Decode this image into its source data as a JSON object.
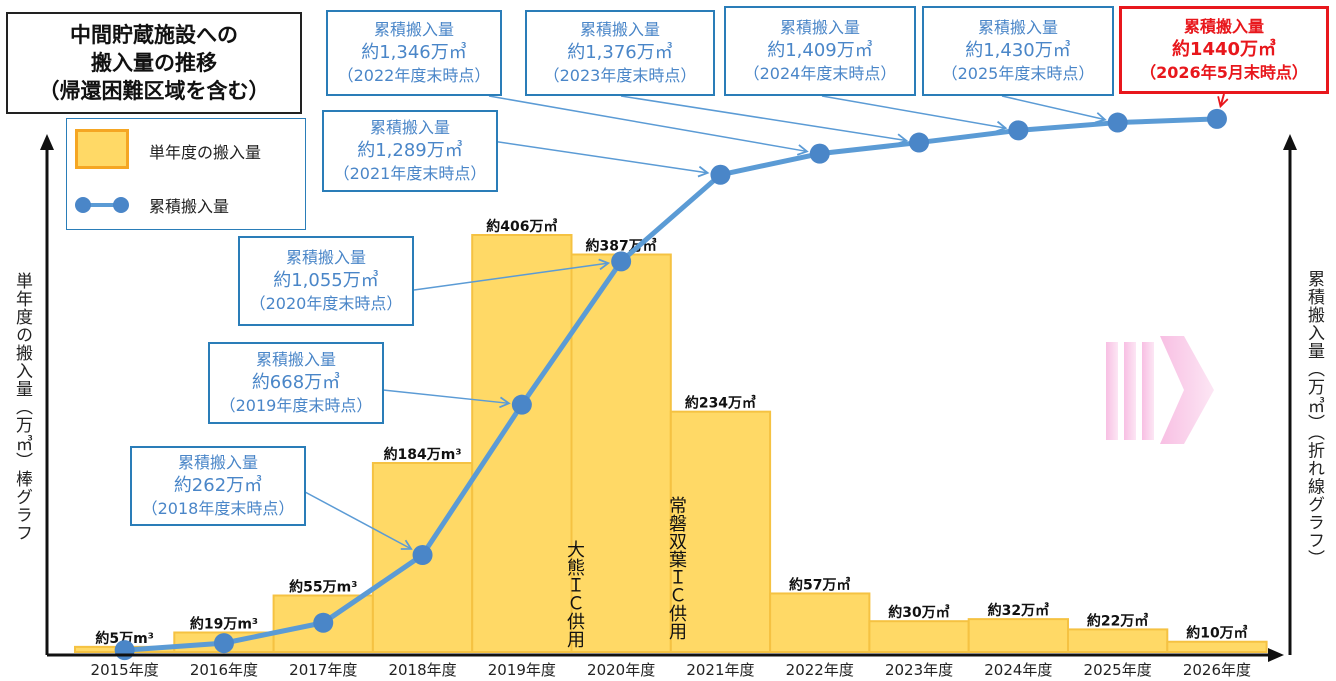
{
  "title": [
    "中間貯蔵施設への",
    "搬入量の推移",
    "（帰還困難区域を含む）"
  ],
  "legend": {
    "bar": "単年度の搬入量",
    "line": "累積搬入量"
  },
  "axes": {
    "left_label": "単年度の搬入量（万㎥）棒グラフ",
    "right_label": "累積搬入量（万㎥）（折れ線グラフ）"
  },
  "annotations": {
    "ookuma": "大熊ＩＣ供用",
    "joban": "常磐双葉ＩＣ供用"
  },
  "colors": {
    "bar_fill": "#ffd966",
    "bar_stroke": "#f5c242",
    "line": "#5b9bd5",
    "marker": "#4a86c8",
    "callout_border": "#2a7db8",
    "highlight": "#e8171c",
    "arrow_decor": "#f7b8e0"
  },
  "chart_data": {
    "type": "bar+line",
    "categories": [
      "2015年度",
      "2016年度",
      "2017年度",
      "2018年度",
      "2019年度",
      "2020年度",
      "2021年度",
      "2022年度",
      "2023年度",
      "2024年度",
      "2025年度",
      "2026年度"
    ],
    "series": [
      {
        "name": "単年度の搬入量",
        "kind": "bar",
        "values": [
          5,
          19,
          55,
          184,
          406,
          387,
          234,
          57,
          30,
          32,
          22,
          10
        ],
        "labels": [
          "約5万m³",
          "約19万m³",
          "約55万m³",
          "約184万m³",
          "約406万㎥",
          "約387万㎥",
          "約234万㎥",
          "約57万㎥",
          "約30万㎥",
          "約32万㎥",
          "約22万㎥",
          "約10万㎥"
        ]
      },
      {
        "name": "累積搬入量",
        "kind": "line",
        "values": [
          5,
          24,
          79,
          262,
          668,
          1055,
          1289,
          1346,
          1376,
          1409,
          1430,
          1440
        ]
      }
    ],
    "ylim_bar": [
      0,
      430
    ],
    "ylim_line": [
      0,
      1680
    ],
    "callouts": [
      {
        "l1": "累積搬入量",
        "l2": "約262万㎥",
        "l3": "（2018年度末時点）"
      },
      {
        "l1": "累積搬入量",
        "l2": "約668万㎥",
        "l3": "（2019年度末時点）"
      },
      {
        "l1": "累積搬入量",
        "l2": "約1,055万㎥",
        "l3": "（2020年度末時点）"
      },
      {
        "l1": "累積搬入量",
        "l2": "約1,289万㎥",
        "l3": "（2021年度末時点）"
      },
      {
        "l1": "累積搬入量",
        "l2": "約1,346万㎥",
        "l3": "（2022年度末時点）"
      },
      {
        "l1": "累積搬入量",
        "l2": "約1,376万㎥",
        "l3": "（2023年度末時点）"
      },
      {
        "l1": "累積搬入量",
        "l2": "約1,409万㎥",
        "l3": "（2024年度末時点）"
      },
      {
        "l1": "累積搬入量",
        "l2": "約1,430万㎥",
        "l3": "（2025年度末時点）"
      },
      {
        "l1": "累積搬入量",
        "l2": "約1440万㎥",
        "l3": "（2026年5月末時点）"
      }
    ]
  }
}
